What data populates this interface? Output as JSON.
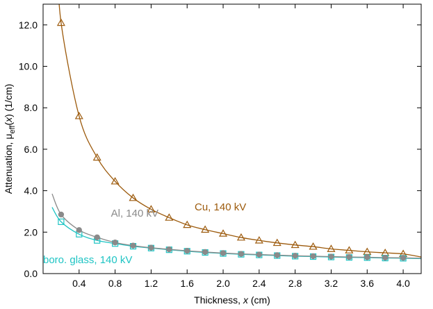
{
  "chart_data": {
    "type": "line",
    "xlabel": {
      "prefix": "Thickness, ",
      "var": "x",
      "suffix": " (cm)"
    },
    "ylabel": {
      "prefix": "Attenuation, μ",
      "sub": "eff",
      "mid": "(",
      "var": "x",
      "suffix": ") (1/cm)"
    },
    "xlim": [
      0,
      4.2
    ],
    "ylim": [
      0,
      13
    ],
    "xticks": [
      0.4,
      0.8,
      1.2,
      1.6,
      2.0,
      2.4,
      2.8,
      3.2,
      3.6,
      4.0
    ],
    "xtick_labels": [
      "0.4",
      "0.8",
      "1.2",
      "1.6",
      "2.0",
      "2.4",
      "2.8",
      "3.2",
      "3.6",
      "4.0"
    ],
    "yticks": [
      0,
      2,
      4,
      6,
      8,
      10,
      12
    ],
    "ytick_labels": [
      "0.0",
      "2.0",
      "4.0",
      "6.0",
      "8.0",
      "10.0",
      "12.0"
    ],
    "grid": false,
    "series": [
      {
        "name": "Cu, 140 kV",
        "color": "#9c5a0c",
        "marker": "triangle-open",
        "x": [
          0.2,
          0.4,
          0.6,
          0.8,
          1.0,
          1.2,
          1.4,
          1.6,
          1.8,
          2.0,
          2.2,
          2.4,
          2.6,
          2.8,
          3.0,
          3.2,
          3.4,
          3.6,
          3.8,
          4.0
        ],
        "y": [
          12.1,
          7.6,
          5.6,
          4.45,
          3.65,
          3.1,
          2.7,
          2.35,
          2.12,
          1.93,
          1.74,
          1.6,
          1.48,
          1.38,
          1.3,
          1.19,
          1.12,
          1.05,
          1.0,
          0.95
        ],
        "fit_x": [
          0.15,
          4.2
        ],
        "fit_y": [
          15.5,
          0.8
        ]
      },
      {
        "name": "Al, 140 kV",
        "color": "#8a8a8a",
        "marker": "circle-filled",
        "x": [
          0.2,
          0.4,
          0.6,
          0.8,
          1.0,
          1.2,
          1.4,
          1.6,
          1.8,
          2.0,
          2.2,
          2.4,
          2.6,
          2.8,
          3.0,
          3.2,
          3.4,
          3.6,
          3.8,
          4.0
        ],
        "y": [
          2.85,
          2.1,
          1.75,
          1.5,
          1.35,
          1.25,
          1.17,
          1.1,
          1.04,
          0.99,
          0.95,
          0.92,
          0.89,
          0.86,
          0.84,
          0.82,
          0.8,
          0.79,
          0.77,
          0.76
        ],
        "fit_x": [
          0.1,
          4.2
        ],
        "fit_y": [
          3.85,
          0.74
        ]
      },
      {
        "name": "boro. glass, 140 kV",
        "color": "#1ec4c4",
        "marker": "square-open",
        "x": [
          0.2,
          0.4,
          0.6,
          0.8,
          1.0,
          1.2,
          1.4,
          1.6,
          1.8,
          2.0,
          2.2,
          2.4,
          2.6,
          2.8,
          3.0,
          3.2,
          3.4,
          3.6,
          3.8,
          4.0
        ],
        "y": [
          2.5,
          1.9,
          1.6,
          1.45,
          1.32,
          1.23,
          1.15,
          1.08,
          1.02,
          0.97,
          0.93,
          0.9,
          0.87,
          0.84,
          0.82,
          0.8,
          0.78,
          0.77,
          0.75,
          0.74
        ],
        "fit_x": [
          0.1,
          4.2
        ],
        "fit_y": [
          3.2,
          0.72
        ]
      }
    ]
  }
}
